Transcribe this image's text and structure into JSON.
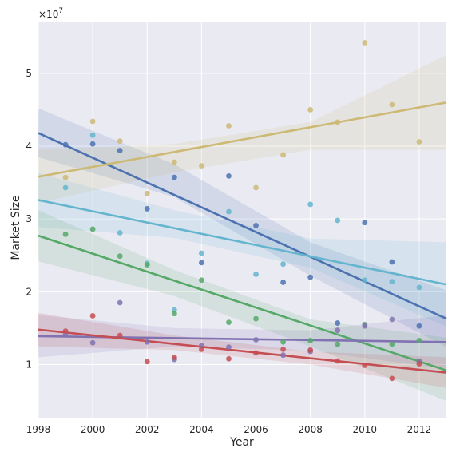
{
  "chart_data": {
    "type": "scatter",
    "xlabel": "Year",
    "ylabel": "Market Size",
    "offset_label": "×10",
    "offset_exponent": "7",
    "xlim": [
      1998,
      2013
    ],
    "ylim": [
      2600000,
      57000000
    ],
    "x_ticks": [
      1998,
      2000,
      2002,
      2004,
      2006,
      2008,
      2010,
      2012
    ],
    "y_ticks": [
      10000000,
      20000000,
      30000000,
      40000000,
      50000000
    ],
    "y_tick_labels": [
      "1",
      "2",
      "3",
      "4",
      "5"
    ],
    "background": "#eaeaf2",
    "grid": true,
    "series": [
      {
        "color": "#4c72b0",
        "points": [
          [
            1999,
            40200000
          ],
          [
            2000,
            40300000
          ],
          [
            2001,
            39400000
          ],
          [
            2002,
            31400000
          ],
          [
            2003,
            35700000
          ],
          [
            2004,
            24000000
          ],
          [
            2005,
            35900000
          ],
          [
            2006,
            29100000
          ],
          [
            2007,
            21300000
          ],
          [
            2008,
            22000000
          ],
          [
            2009,
            15700000
          ],
          [
            2010,
            29500000
          ],
          [
            2011,
            24100000
          ],
          [
            2012,
            15300000
          ]
        ],
        "fit": [
          [
            1998,
            41800000
          ],
          [
            2013,
            16300000
          ]
        ],
        "band": {
          "upper": [
            [
              1998,
              45200000
            ],
            [
              2003,
              37500000
            ],
            [
              2008,
              26800000
            ],
            [
              2013,
              20200000
            ]
          ],
          "lower": [
            [
              1998,
              38500000
            ],
            [
              2003,
              33000000
            ],
            [
              2008,
              22200000
            ],
            [
              2013,
              12400000
            ]
          ]
        }
      },
      {
        "color": "#ccb974",
        "points": [
          [
            1999,
            35700000
          ],
          [
            2000,
            43400000
          ],
          [
            2001,
            40700000
          ],
          [
            2002,
            33500000
          ],
          [
            2003,
            37800000
          ],
          [
            2004,
            37300000
          ],
          [
            2005,
            42800000
          ],
          [
            2006,
            34300000
          ],
          [
            2007,
            38800000
          ],
          [
            2008,
            45000000
          ],
          [
            2009,
            43300000
          ],
          [
            2010,
            54200000
          ],
          [
            2011,
            45700000
          ],
          [
            2012,
            40600000
          ]
        ],
        "fit": [
          [
            1998,
            35800000
          ],
          [
            2013,
            46000000
          ]
        ],
        "band": {
          "upper": [
            [
              1998,
              39500000
            ],
            [
              2003,
              40300000
            ],
            [
              2008,
              43300000
            ],
            [
              2013,
              52500000
            ]
          ],
          "lower": [
            [
              1998,
              32200000
            ],
            [
              2003,
              36400000
            ],
            [
              2008,
              39500000
            ],
            [
              2013,
              39500000
            ]
          ]
        }
      },
      {
        "color": "#64b5cd",
        "points": [
          [
            1999,
            34300000
          ],
          [
            2000,
            41500000
          ],
          [
            2001,
            28100000
          ],
          [
            2002,
            23900000
          ],
          [
            2003,
            17500000
          ],
          [
            2004,
            25300000
          ],
          [
            2005,
            31000000
          ],
          [
            2006,
            22400000
          ],
          [
            2007,
            23800000
          ],
          [
            2008,
            32000000
          ],
          [
            2009,
            29800000
          ],
          [
            2010,
            21600000
          ],
          [
            2011,
            21400000
          ],
          [
            2012,
            20600000
          ]
        ],
        "fit": [
          [
            1998,
            32600000
          ],
          [
            2013,
            21000000
          ]
        ],
        "band": {
          "upper": [
            [
              1998,
              36300000
            ],
            [
              2003,
              31200000
            ],
            [
              2008,
              27300000
            ],
            [
              2013,
              26800000
            ]
          ],
          "lower": [
            [
              1998,
              28900000
            ],
            [
              2003,
              27400000
            ],
            [
              2008,
              23300000
            ],
            [
              2013,
              15200000
            ]
          ]
        }
      },
      {
        "color": "#55a868",
        "points": [
          [
            1999,
            27900000
          ],
          [
            2000,
            28600000
          ],
          [
            2001,
            24900000
          ],
          [
            2002,
            23700000
          ],
          [
            2003,
            17000000
          ],
          [
            2004,
            21600000
          ],
          [
            2005,
            15800000
          ],
          [
            2006,
            16300000
          ],
          [
            2007,
            13100000
          ],
          [
            2008,
            13300000
          ],
          [
            2009,
            12800000
          ],
          [
            2010,
            15500000
          ],
          [
            2011,
            12800000
          ],
          [
            2012,
            13300000
          ]
        ],
        "fit": [
          [
            1998,
            27700000
          ],
          [
            2013,
            9200000
          ]
        ],
        "band": {
          "upper": [
            [
              1998,
              31200000
            ],
            [
              2003,
              23000000
            ],
            [
              2008,
              16200000
            ],
            [
              2013,
              13700000
            ]
          ],
          "lower": [
            [
              1998,
              24200000
            ],
            [
              2003,
              19400000
            ],
            [
              2008,
              12500000
            ],
            [
              2013,
              5000000
            ]
          ]
        }
      },
      {
        "color": "#8172b2",
        "points": [
          [
            1999,
            14100000
          ],
          [
            2000,
            13000000
          ],
          [
            2001,
            18500000
          ],
          [
            2002,
            13100000
          ],
          [
            2003,
            10700000
          ],
          [
            2004,
            12600000
          ],
          [
            2005,
            12400000
          ],
          [
            2006,
            13400000
          ],
          [
            2007,
            11300000
          ],
          [
            2008,
            11800000
          ],
          [
            2009,
            14700000
          ],
          [
            2010,
            15300000
          ],
          [
            2011,
            16200000
          ],
          [
            2012,
            10500000
          ]
        ],
        "fit": [
          [
            1998,
            13900000
          ],
          [
            2013,
            13100000
          ]
        ],
        "band": {
          "upper": [
            [
              1998,
              16800000
            ],
            [
              2003,
              15000000
            ],
            [
              2008,
              14700000
            ],
            [
              2013,
              16800000
            ]
          ],
          "lower": [
            [
              1998,
              11000000
            ],
            [
              2003,
              12500000
            ],
            [
              2008,
              11900000
            ],
            [
              2013,
              9400000
            ]
          ]
        }
      },
      {
        "color": "#c44e52",
        "points": [
          [
            1999,
            14600000
          ],
          [
            2000,
            16700000
          ],
          [
            2001,
            14000000
          ],
          [
            2002,
            10400000
          ],
          [
            2003,
            11000000
          ],
          [
            2004,
            12100000
          ],
          [
            2005,
            10800000
          ],
          [
            2006,
            11600000
          ],
          [
            2007,
            12100000
          ],
          [
            2008,
            12000000
          ],
          [
            2009,
            10500000
          ],
          [
            2010,
            9900000
          ],
          [
            2011,
            8100000
          ],
          [
            2012,
            10100000
          ]
        ],
        "fit": [
          [
            1998,
            14800000
          ],
          [
            2013,
            8900000
          ]
        ],
        "band": {
          "upper": [
            [
              1998,
              17100000
            ],
            [
              2003,
              14000000
            ],
            [
              2008,
              11800000
            ],
            [
              2013,
              11000000
            ]
          ],
          "lower": [
            [
              1998,
              12500000
            ],
            [
              2003,
              12000000
            ],
            [
              2008,
              10000000
            ],
            [
              2013,
              6800000
            ]
          ]
        }
      }
    ]
  }
}
